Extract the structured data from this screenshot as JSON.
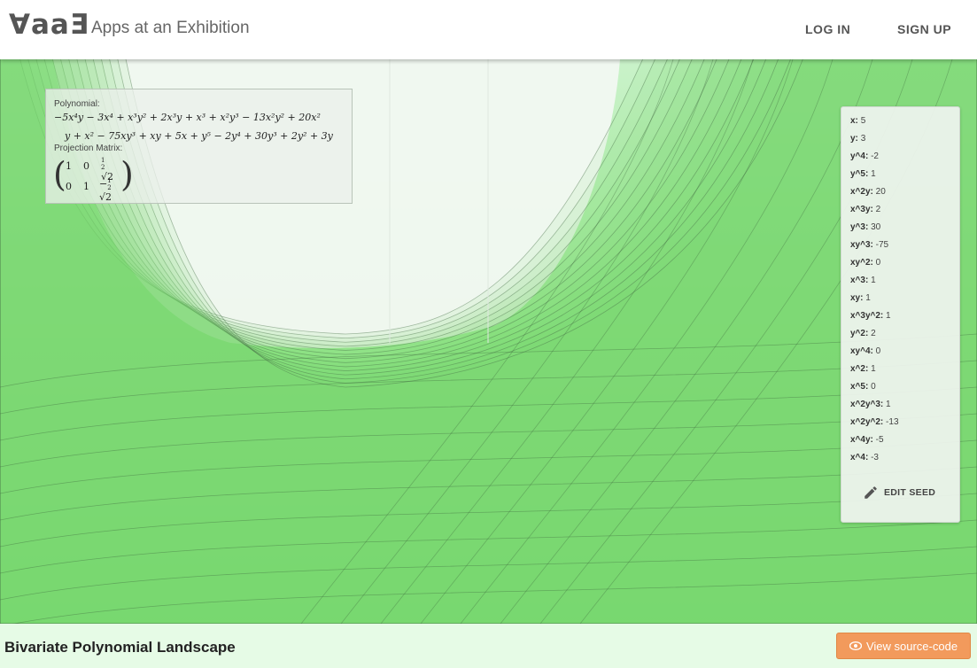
{
  "header": {
    "logo": "∀aaƎ",
    "title": "Apps at an Exhibition",
    "login_label": "LOG IN",
    "signup_label": "SIGN UP"
  },
  "polynomial_panel": {
    "polynomial_label": "Polynomial:",
    "polynomial_line1": "−5x⁴y − 3x⁴ + x³y² + 2x³y + x³ + x²y³ − 13x²y² + 20x²",
    "polynomial_line2": "y + x² − 75xy³ + xy + 5x + y⁵ − 2y⁴ + 30y³ + 2y² + 3y",
    "matrix_label": "Projection Matrix:",
    "matrix": {
      "r1c1": "1",
      "r1c2": "0",
      "r1c3": "√2",
      "r2c1": "0",
      "r2c2": "1",
      "r2c3": "√2",
      "frac_num": "1",
      "frac_den": "2"
    }
  },
  "seed": {
    "items": [
      {
        "key": "x:",
        "value": "5"
      },
      {
        "key": "y:",
        "value": "3"
      },
      {
        "key": "y^4:",
        "value": "-2"
      },
      {
        "key": "y^5:",
        "value": "1"
      },
      {
        "key": "x^2y:",
        "value": "20"
      },
      {
        "key": "x^3y:",
        "value": "2"
      },
      {
        "key": "y^3:",
        "value": "30"
      },
      {
        "key": "xy^3:",
        "value": "-75"
      },
      {
        "key": "xy^2:",
        "value": "0"
      },
      {
        "key": "x^3:",
        "value": "1"
      },
      {
        "key": "xy:",
        "value": "1"
      },
      {
        "key": "x^3y^2:",
        "value": "1"
      },
      {
        "key": "y^2:",
        "value": "2"
      },
      {
        "key": "xy^4:",
        "value": "0"
      },
      {
        "key": "x^2:",
        "value": "1"
      },
      {
        "key": "x^5:",
        "value": "0"
      },
      {
        "key": "x^2y^3:",
        "value": "1"
      },
      {
        "key": "x^2y^2:",
        "value": "-13"
      },
      {
        "key": "x^4y:",
        "value": "-5"
      },
      {
        "key": "x^4:",
        "value": "-3"
      }
    ],
    "edit_label": "EDIT SEED"
  },
  "footer": {
    "title": "Bivariate Polynomial Landscape",
    "source_label": "View source-code"
  },
  "colors": {
    "accent_orange": "#f29a5c",
    "surface_green": "#9be89a"
  },
  "icons": {
    "edit": "pencil-icon",
    "source": "eye-icon"
  }
}
